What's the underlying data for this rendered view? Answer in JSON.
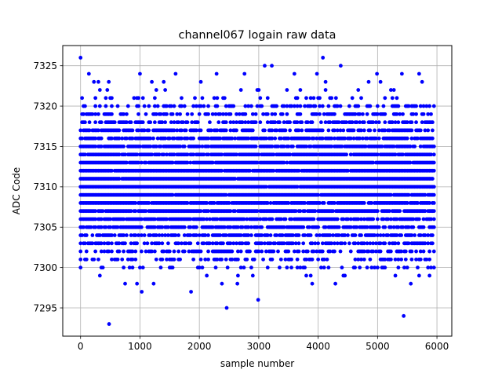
{
  "chart_data": {
    "type": "scatter",
    "title": "channel067 logain raw data",
    "xlabel": "sample number",
    "ylabel": "ADC Code",
    "xlim": [
      -300,
      6250
    ],
    "ylim": [
      7291.5,
      7327.5
    ],
    "xticks": [
      0,
      1000,
      2000,
      3000,
      4000,
      5000,
      6000
    ],
    "xtick_labels": [
      "0",
      "1000",
      "2000",
      "3000",
      "4000",
      "5000",
      "6000"
    ],
    "yticks": [
      7295,
      7300,
      7305,
      7310,
      7315,
      7320,
      7325
    ],
    "ytick_labels": [
      "7295",
      "7300",
      "7305",
      "7310",
      "7315",
      "7320",
      "7325"
    ],
    "grid": true,
    "legend": "none",
    "marker_color": "#0000ff",
    "series": [
      {
        "x_start": 0,
        "x_end": 5950,
        "x_step": 25,
        "core_range": [
          7302,
          7319
        ],
        "value_min": 7293,
        "value_max": 7326,
        "notable_points": [
          {
            "x": 0,
            "y": 7326
          },
          {
            "x": 4080,
            "y": 7326
          },
          {
            "x": 480,
            "y": 7293
          },
          {
            "x": 5440,
            "y": 7294
          },
          {
            "x": 2460,
            "y": 7295
          },
          {
            "x": 2990,
            "y": 7296
          },
          {
            "x": 1030,
            "y": 7297
          },
          {
            "x": 1860,
            "y": 7297
          },
          {
            "x": 3100,
            "y": 7325
          },
          {
            "x": 3220,
            "y": 7325
          },
          {
            "x": 4380,
            "y": 7325
          },
          {
            "x": 140,
            "y": 7324
          },
          {
            "x": 1000,
            "y": 7324
          },
          {
            "x": 1600,
            "y": 7324
          },
          {
            "x": 2290,
            "y": 7324
          },
          {
            "x": 2760,
            "y": 7324
          },
          {
            "x": 3600,
            "y": 7324
          },
          {
            "x": 3980,
            "y": 7324
          },
          {
            "x": 4990,
            "y": 7324
          },
          {
            "x": 5410,
            "y": 7324
          },
          {
            "x": 5700,
            "y": 7324
          },
          {
            "x": 2380,
            "y": 7298
          },
          {
            "x": 2640,
            "y": 7298
          },
          {
            "x": 3900,
            "y": 7298
          },
          {
            "x": 4290,
            "y": 7298
          },
          {
            "x": 5560,
            "y": 7298
          },
          {
            "x": 750,
            "y": 7298
          },
          {
            "x": 950,
            "y": 7298
          },
          {
            "x": 1230,
            "y": 7298
          },
          {
            "x": 5900,
            "y": 7300
          },
          {
            "x": 4620,
            "y": 7300
          }
        ]
      }
    ]
  }
}
